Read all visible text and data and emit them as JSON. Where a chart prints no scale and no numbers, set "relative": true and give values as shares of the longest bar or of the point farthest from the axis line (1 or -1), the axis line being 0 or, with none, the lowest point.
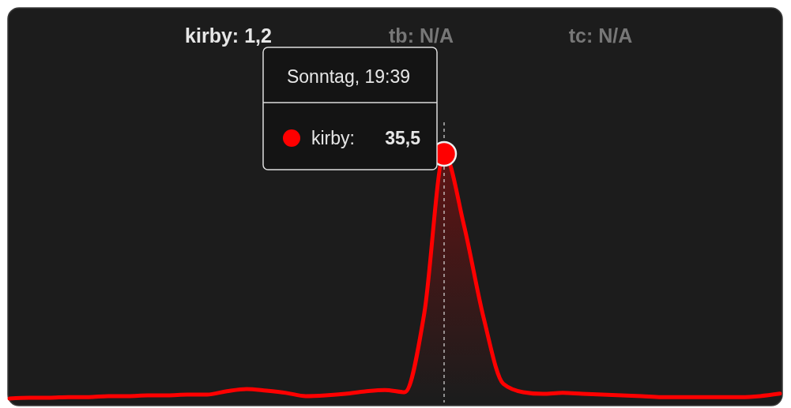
{
  "chart_data": {
    "type": "area",
    "relative": true,
    "categories": [
      null,
      null,
      null,
      null,
      null,
      null,
      null,
      null,
      null,
      null,
      null,
      null,
      null,
      null,
      null,
      null,
      null,
      null,
      null,
      null,
      null,
      null,
      null,
      null,
      null,
      null,
      null,
      null,
      null,
      null,
      null,
      null,
      null,
      null,
      null,
      null,
      null,
      null,
      null,
      null
    ],
    "series": [
      {
        "name": "kirby:",
        "color": "#ff0000",
        "values": [
          0,
          0.003,
          0.003,
          0.006,
          0.006,
          0.01,
          0.01,
          0.013,
          0.013,
          0.016,
          0.016,
          0.03,
          0.039,
          0.032,
          0.023,
          0.01,
          0.013,
          0.019,
          0.029,
          0.035,
          0.026,
          0.35,
          1,
          0.71,
          0.33,
          0.06,
          0.026,
          0.019,
          0.023,
          0.019,
          0.016,
          0.013,
          0.01,
          0.006,
          0.006,
          0.006,
          0.006,
          0.006,
          0.01,
          0.02
        ]
      }
    ],
    "annotations": [
      "kirby: 1,2",
      "tb: N/A",
      "tc: N/A",
      "Sonntag, 19:39",
      "35,5"
    ]
  }
}
